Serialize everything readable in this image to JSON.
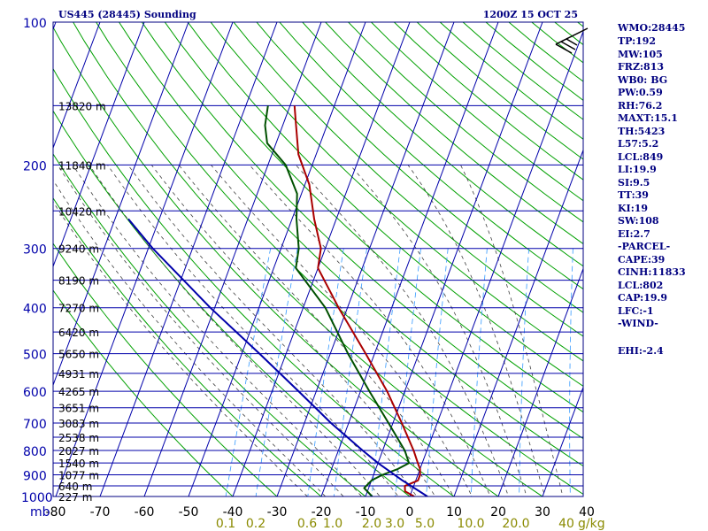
{
  "chart_data": {
    "type": "line",
    "title": "US445 (28445) Sounding",
    "time": "1200Z 15 OCT 25",
    "pressure_unit_label": "mb",
    "mixing_unit_label": "g/kg",
    "pressure_levels": [
      100,
      200,
      300,
      400,
      500,
      600,
      700,
      800,
      900,
      1000
    ],
    "temperature_ticks": [
      -80,
      -70,
      -60,
      -50,
      -40,
      -30,
      -20,
      -10,
      0,
      10,
      20,
      30,
      40
    ],
    "mixing_ratio_labels": [
      "0.1",
      "0.2",
      "0.6",
      "1.0",
      "2.0",
      "3.0",
      "5.0",
      "10.0",
      "20.0",
      "40"
    ],
    "heights": [
      "13820 m",
      "11840 m",
      "10420 m",
      "9240 m",
      "8190 m",
      "7270 m",
      "6420 m",
      "5650 m",
      "4931 m",
      "4265 m",
      "3651 m",
      "3083 m",
      "2538 m",
      "2027 m",
      "1540 m",
      "1077 m",
      "640 m",
      "227 m"
    ],
    "ylim": [
      100,
      1000
    ],
    "xlim": [
      -80,
      40
    ],
    "series": [
      {
        "name": "Temperature",
        "color": "#aa0000",
        "points": [
          [
            1000,
            1.0
          ],
          [
            975,
            -1.5
          ],
          [
            950,
            -2.0
          ],
          [
            925,
            0.5
          ],
          [
            900,
            0.5
          ],
          [
            875,
            0.0
          ],
          [
            850,
            -1.0
          ],
          [
            800,
            -3.0
          ],
          [
            700,
            -8.0
          ],
          [
            600,
            -14.0
          ],
          [
            500,
            -22.0
          ],
          [
            400,
            -32.0
          ],
          [
            330,
            -40.0
          ],
          [
            300,
            -41.0
          ],
          [
            260,
            -45.0
          ],
          [
            220,
            -49.0
          ],
          [
            190,
            -54.0
          ],
          [
            165,
            -57.0
          ],
          [
            150,
            -59.0
          ]
        ]
      },
      {
        "name": "Dewpoint",
        "color": "#005000",
        "points": [
          [
            1000,
            -8.5
          ],
          [
            960,
            -11.0
          ],
          [
            925,
            -10.0
          ],
          [
            900,
            -8.0
          ],
          [
            875,
            -5.0
          ],
          [
            850,
            -3.0
          ],
          [
            800,
            -5.0
          ],
          [
            700,
            -11.0
          ],
          [
            600,
            -18.0
          ],
          [
            500,
            -26.0
          ],
          [
            400,
            -35.0
          ],
          [
            330,
            -45.0
          ],
          [
            300,
            -46.0
          ],
          [
            260,
            -49.0
          ],
          [
            230,
            -51.0
          ],
          [
            200,
            -56.0
          ],
          [
            180,
            -62.0
          ],
          [
            165,
            -64.0
          ],
          [
            150,
            -65.0
          ]
        ]
      },
      {
        "name": "Parcel",
        "color": "#0000aa",
        "points": [
          [
            1000,
            4.0
          ],
          [
            925,
            -3.0
          ],
          [
            850,
            -10.0
          ],
          [
            800,
            -14.5
          ],
          [
            700,
            -24.0
          ],
          [
            600,
            -34.0
          ],
          [
            500,
            -46.0
          ],
          [
            400,
            -61.0
          ],
          [
            300,
            -79.0
          ],
          [
            260,
            -87.0
          ]
        ]
      }
    ],
    "grid": true
  },
  "indices": {
    "wmo": "WMO:28445",
    "tp": "TP:192",
    "mw": "MW:105",
    "frz": "FRZ:813",
    "wb0": "WB0: BG",
    "pw": "PW:0.59",
    "rh": "RH:76.2",
    "maxt": "MAXT:15.1",
    "th": "TH:5423",
    "l57": "L57:5.2",
    "lcl": "LCL:849",
    "li": "LI:19.9",
    "si": "SI:9.5",
    "tt": "TT:39",
    "ki": "KI:19",
    "sw": "SW:108",
    "ei": "EI:2.7",
    "parcel_header": "-PARCEL-",
    "cape": "CAPE:39",
    "cinh": "CINH:11833",
    "parcel_lcl": "LCL:802",
    "cap": "CAP:19.9",
    "lfc": "LFC:-1",
    "wind_header": "-WIND-",
    "ehi": "EHI:-2.4"
  },
  "colors": {
    "frame": "#000080",
    "isobar": "#0000aa",
    "isotherm": "#0000aa",
    "dry_adiabat": "#00a000",
    "moist_adiabat": "#404040",
    "mixing_ratio": "#3399ff"
  }
}
